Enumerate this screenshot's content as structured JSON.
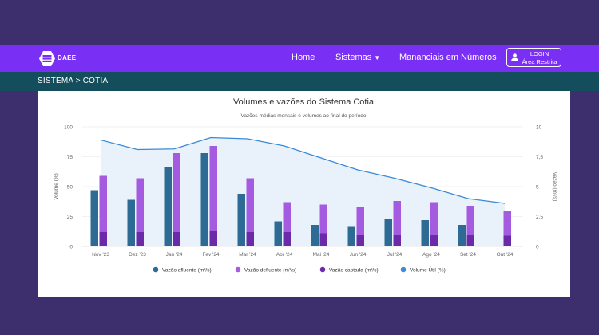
{
  "header": {
    "logo_text": "DAEE",
    "nav": [
      {
        "label": "Home"
      },
      {
        "label": "Sistemas"
      },
      {
        "label": "Mananciais em Números"
      }
    ],
    "login": {
      "line1": "LOGIN",
      "line2": "Área Restrita"
    }
  },
  "breadcrumb": {
    "text": "SISTEMA > COTIA"
  },
  "colors": {
    "navbar": "#7a2ff5",
    "breadcrumb": "#144d5c",
    "afluente": "#2d6b94",
    "defluente": "#a55be0",
    "captada": "#6b2ba8",
    "volume": "#3a8ad6",
    "volume_fill": "#e9f1fa"
  },
  "chart_data": {
    "type": "bar",
    "title": "Volumes e vazões do Sistema Cotia",
    "subtitle": "Vazões médias mensais e volumes ao final do período",
    "categories": [
      "Nov '23",
      "Dez '23",
      "Jan '24",
      "Fev '24",
      "Mar '24",
      "Abr '24",
      "Mai '24",
      "Jun '24",
      "Jul '24",
      "Ago '24",
      "Set '24",
      "Out '24"
    ],
    "ylabel_left": "Volume (%)",
    "ylabel_right": "Vazão (m³/s)",
    "ylim_left": [
      0,
      100
    ],
    "ylim_right": [
      0,
      10
    ],
    "yticks_left": [
      "0",
      "25",
      "50",
      "75",
      "100"
    ],
    "yticks_right": [
      "0",
      "2,5",
      "5",
      "7,5",
      "10"
    ],
    "legend_position": "bottom",
    "series": [
      {
        "name": "Vazão afluente (m³/s)",
        "type": "bar",
        "axis": "right",
        "values": [
          4.7,
          3.9,
          6.6,
          7.8,
          4.4,
          2.1,
          1.8,
          1.7,
          2.3,
          2.2,
          1.8,
          0
        ]
      },
      {
        "name": "Vazão defluente (m³/s)",
        "type": "bar",
        "axis": "right",
        "values": [
          5.9,
          5.7,
          7.8,
          8.4,
          5.7,
          3.7,
          3.5,
          3.3,
          3.8,
          3.7,
          3.4,
          3.0
        ]
      },
      {
        "name": "Vazão captada (m³/s)",
        "type": "bar",
        "axis": "right",
        "values": [
          1.2,
          1.2,
          1.2,
          1.3,
          1.2,
          1.2,
          1.1,
          1.0,
          1.0,
          1.0,
          1.0,
          0.9
        ]
      },
      {
        "name": "Volume Útil (%)",
        "type": "area",
        "axis": "left",
        "values": [
          89,
          81,
          81.5,
          91,
          90,
          84,
          74,
          64,
          57,
          49,
          40,
          36
        ]
      }
    ]
  }
}
